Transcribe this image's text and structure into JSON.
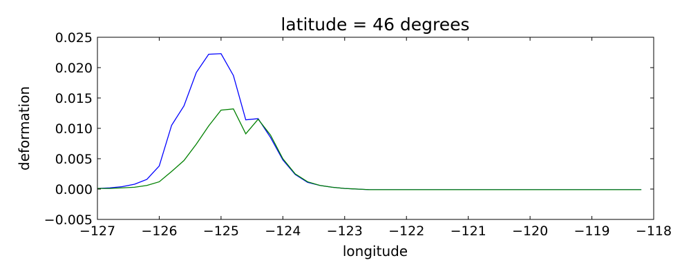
{
  "chart_data": {
    "type": "line",
    "title": "latitude = 46 degrees",
    "xlabel": "longitude",
    "ylabel": "deformation",
    "xlim": [
      -127,
      -118
    ],
    "ylim": [
      -0.005,
      0.025
    ],
    "grid": false,
    "x_ticks": [
      -127,
      -126,
      -125,
      -124,
      -123,
      -122,
      -121,
      -120,
      -119,
      -118
    ],
    "x_tick_labels": [
      "−127",
      "−126",
      "−125",
      "−124",
      "−123",
      "−122",
      "−121",
      "−120",
      "−119",
      "−118"
    ],
    "y_ticks": [
      -0.005,
      0.0,
      0.005,
      0.01,
      0.015,
      0.02,
      0.025
    ],
    "y_tick_labels": [
      "−0.005",
      "0.000",
      "0.005",
      "0.010",
      "0.015",
      "0.020",
      "0.025"
    ],
    "series": [
      {
        "color": "#0000ff",
        "x": [
          -127.0,
          -126.8,
          -126.6,
          -126.4,
          -126.2,
          -126.0,
          -125.8,
          -125.6,
          -125.4,
          -125.2,
          -125.0,
          -124.8,
          -124.6,
          -124.4,
          -124.2,
          -124.0,
          -123.8,
          -123.6,
          -123.4,
          -123.2,
          -123.0,
          -122.8,
          -122.6,
          -122.4,
          -122.0,
          -121.5,
          -121.0,
          -120.0,
          -119.0,
          -118.2
        ],
        "y": [
          0.0001,
          0.0002,
          0.0004,
          0.0008,
          0.0016,
          0.0038,
          0.0105,
          0.0137,
          0.0192,
          0.0222,
          0.0223,
          0.0187,
          0.0114,
          0.0116,
          0.0085,
          0.0048,
          0.0024,
          0.0011,
          0.0006,
          0.0003,
          0.0001,
          0.0,
          -0.0001,
          -0.0001,
          -0.0001,
          -0.0001,
          -0.0001,
          -0.0001,
          -0.0001,
          -0.0001
        ]
      },
      {
        "color": "#008000",
        "x": [
          -127.0,
          -126.8,
          -126.6,
          -126.4,
          -126.2,
          -126.0,
          -125.8,
          -125.6,
          -125.4,
          -125.2,
          -125.0,
          -124.8,
          -124.6,
          -124.4,
          -124.2,
          -124.0,
          -123.8,
          -123.6,
          -123.4,
          -123.2,
          -123.0,
          -122.8,
          -122.6,
          -122.4,
          -122.0,
          -121.5,
          -121.0,
          -120.0,
          -119.0,
          -118.2
        ],
        "y": [
          0.0001,
          0.0001,
          0.0002,
          0.0003,
          0.0006,
          0.0012,
          0.0029,
          0.0047,
          0.0074,
          0.0104,
          0.013,
          0.0132,
          0.0091,
          0.0115,
          0.0089,
          0.005,
          0.0025,
          0.0012,
          0.0006,
          0.0003,
          0.0001,
          0.0,
          -0.0001,
          -0.0001,
          -0.0001,
          -0.0001,
          -0.0001,
          -0.0001,
          -0.0001,
          -0.0001
        ]
      }
    ]
  }
}
